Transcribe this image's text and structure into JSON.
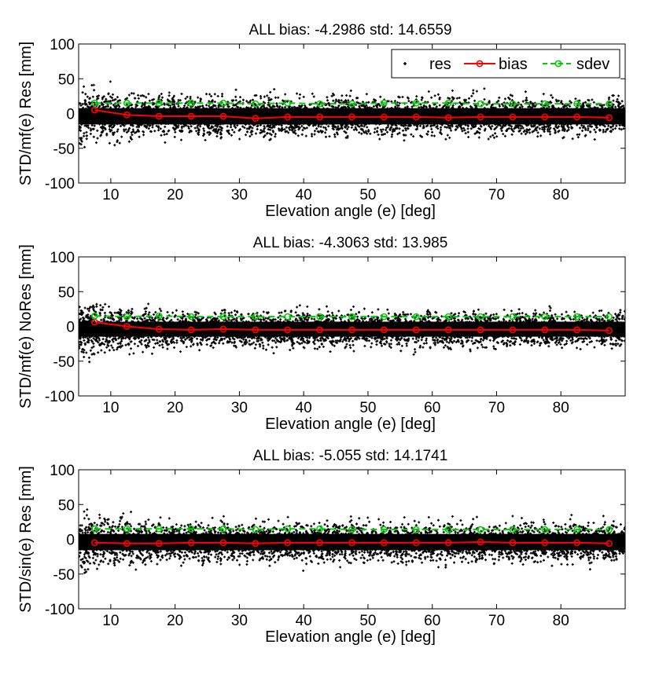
{
  "colors": {
    "res": "#000000",
    "bias": "#ff0000",
    "sdev": "#00cc00"
  },
  "chart_data": [
    {
      "type": "scatter",
      "title": "ALL bias: -4.2986 std: 14.6559",
      "xlabel": "Elevation angle (e) [deg]",
      "ylabel": "STD/mf(e) Res [mm]",
      "xlim": [
        5,
        90
      ],
      "ylim": [
        -100,
        100
      ],
      "xticks": [
        "10",
        "20",
        "30",
        "40",
        "50",
        "60",
        "70",
        "80"
      ],
      "yticks": [
        "100",
        "50",
        "0",
        "-50",
        "-100"
      ],
      "legend": [
        "res",
        "bias",
        "sdev"
      ],
      "legend_position": "top-right",
      "scatter_spread": 13,
      "x": [
        7.5,
        12.5,
        17.5,
        22.5,
        27.5,
        32.5,
        37.5,
        42.5,
        47.5,
        52.5,
        57.5,
        62.5,
        67.5,
        72.5,
        77.5,
        82.5,
        87.5
      ],
      "series": [
        {
          "name": "bias",
          "values": [
            5,
            -2,
            -4,
            -4,
            -4,
            -7,
            -5,
            -5,
            -5,
            -5,
            -5,
            -6,
            -5,
            -5,
            -5,
            -5,
            -6
          ]
        },
        {
          "name": "sdev",
          "values": [
            15,
            15,
            15,
            15,
            15,
            14,
            15,
            14,
            14,
            15,
            15,
            15,
            14,
            14,
            14,
            14,
            14
          ]
        }
      ]
    },
    {
      "type": "scatter",
      "title": "ALL bias: -4.3063 std: 13.985",
      "xlabel": "Elevation angle (e) [deg]",
      "ylabel": "STD/mf(e) NoRes [mm]",
      "xlim": [
        5,
        90
      ],
      "ylim": [
        -100,
        100
      ],
      "xticks": [
        "10",
        "20",
        "30",
        "40",
        "50",
        "60",
        "70",
        "80"
      ],
      "yticks": [
        "100",
        "50",
        "0",
        "-50",
        "-100"
      ],
      "scatter_spread": 12,
      "x": [
        7.5,
        12.5,
        17.5,
        22.5,
        27.5,
        32.5,
        37.5,
        42.5,
        47.5,
        52.5,
        57.5,
        62.5,
        67.5,
        72.5,
        77.5,
        82.5,
        87.5
      ],
      "series": [
        {
          "name": "bias",
          "values": [
            6,
            0,
            -4,
            -5,
            -4,
            -5,
            -5,
            -5,
            -5,
            -5,
            -5,
            -5,
            -5,
            -5,
            -5,
            -5,
            -6
          ]
        },
        {
          "name": "sdev",
          "values": [
            15,
            14,
            15,
            14,
            14,
            14,
            14,
            14,
            14,
            14,
            14,
            14,
            14,
            14,
            14,
            14,
            14
          ]
        }
      ]
    },
    {
      "type": "scatter",
      "title": "ALL bias: -5.055 std: 14.1741",
      "xlabel": "Elevation angle (e) [deg]",
      "ylabel": "STD/sin(e) Res [mm]",
      "xlim": [
        5,
        90
      ],
      "ylim": [
        -100,
        100
      ],
      "xticks": [
        "10",
        "20",
        "30",
        "40",
        "50",
        "60",
        "70",
        "80"
      ],
      "yticks": [
        "100",
        "50",
        "0",
        "-50",
        "-100"
      ],
      "scatter_spread": 13,
      "x": [
        7.5,
        12.5,
        17.5,
        22.5,
        27.5,
        32.5,
        37.5,
        42.5,
        47.5,
        52.5,
        57.5,
        62.5,
        67.5,
        72.5,
        77.5,
        82.5,
        87.5
      ],
      "series": [
        {
          "name": "bias",
          "values": [
            -5,
            -6,
            -6,
            -5,
            -5,
            -6,
            -5,
            -5,
            -5,
            -5,
            -5,
            -5,
            -4,
            -5,
            -5,
            -5,
            -6
          ]
        },
        {
          "name": "sdev",
          "values": [
            15,
            15,
            15,
            15,
            15,
            14,
            15,
            15,
            14,
            14,
            14,
            14,
            14,
            14,
            14,
            14,
            14
          ]
        }
      ]
    }
  ]
}
